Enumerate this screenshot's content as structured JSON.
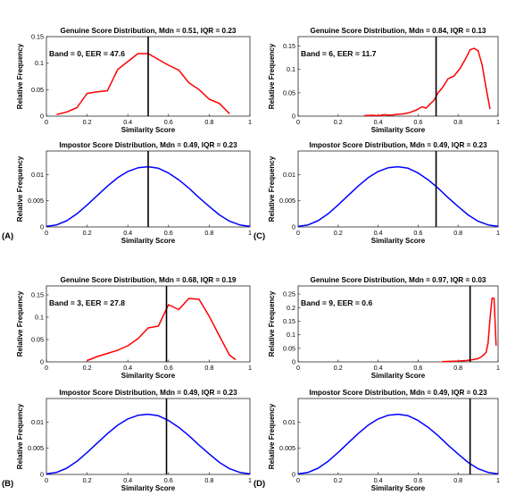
{
  "chart_data": [
    {
      "id": "A-genuine",
      "type": "line",
      "title": "Genuine Score Distribution, Mdn = 0.51, IQR = 0.23",
      "annotation": "Band = 0, EER = 47.6",
      "panel_label": "",
      "xlabel": "Similarity Score",
      "ylabel": "Relative Frequency",
      "xlim": [
        0,
        1
      ],
      "ylim": [
        0,
        0.15
      ],
      "xticks": [
        "0",
        "0.2",
        "0.4",
        "0.6",
        "0.8",
        "1"
      ],
      "yticks": [
        "0",
        "0.05",
        "0.1",
        "0.15"
      ],
      "threshold": 0.5,
      "series": [
        {
          "color": "#ff0000",
          "x": [
            0.05,
            0.1,
            0.15,
            0.2,
            0.25,
            0.3,
            0.35,
            0.4,
            0.45,
            0.5,
            0.55,
            0.6,
            0.65,
            0.7,
            0.75,
            0.8,
            0.85,
            0.9
          ],
          "y": [
            0.003,
            0.008,
            0.016,
            0.043,
            0.046,
            0.048,
            0.088,
            0.103,
            0.118,
            0.118,
            0.107,
            0.096,
            0.087,
            0.063,
            0.05,
            0.032,
            0.024,
            0.0045
          ]
        }
      ]
    },
    {
      "id": "A-impostor",
      "type": "line",
      "title": "Impostor Score Distribution, Mdn = 0.49, IQR = 0.23",
      "annotation": "",
      "panel_label": "(A)",
      "xlabel": "Similarity Score",
      "ylabel": "Relative Frequency",
      "xlim": [
        0,
        1
      ],
      "ylim": [
        0,
        0.0145
      ],
      "xticks": [
        "0",
        "0.2",
        "0.4",
        "0.6",
        "0.8",
        "1"
      ],
      "yticks": [
        "0",
        "0.005",
        "0.01"
      ],
      "threshold": 0.5,
      "series": [
        {
          "color": "#0000ff",
          "x": [
            0,
            0.05,
            0.1,
            0.15,
            0.2,
            0.25,
            0.3,
            0.35,
            0.4,
            0.45,
            0.5,
            0.55,
            0.6,
            0.65,
            0.7,
            0.75,
            0.8,
            0.85,
            0.9,
            0.95,
            1
          ],
          "y": [
            0.0001,
            0.0004,
            0.0012,
            0.0025,
            0.0042,
            0.006,
            0.0078,
            0.0094,
            0.0106,
            0.0113,
            0.0115,
            0.0112,
            0.0103,
            0.009,
            0.0074,
            0.0056,
            0.0039,
            0.0023,
            0.0011,
            0.0004,
            0.0001
          ]
        }
      ]
    },
    {
      "id": "C-genuine",
      "type": "line",
      "title": "Genuine Score Distribution, Mdn = 0.84, IQR = 0.13",
      "annotation": "Band = 6, EER = 11.7",
      "panel_label": "",
      "xlabel": "Similarity Score",
      "ylabel": "Relative Frequency",
      "xlim": [
        0,
        1
      ],
      "ylim": [
        0,
        0.17
      ],
      "xticks": [
        "0",
        "0.2",
        "0.4",
        "0.6",
        "0.8",
        "1"
      ],
      "yticks": [
        "0",
        "0.05",
        "0.1",
        "0.15"
      ],
      "threshold": 0.69,
      "series": [
        {
          "color": "#ff0000",
          "x": [
            0.33,
            0.37,
            0.4,
            0.43,
            0.46,
            0.5,
            0.53,
            0.56,
            0.59,
            0.62,
            0.64,
            0.66,
            0.68,
            0.7,
            0.72,
            0.75,
            0.78,
            0.81,
            0.84,
            0.86,
            0.88,
            0.9,
            0.92,
            0.94,
            0.96
          ],
          "y": [
            0.001,
            0.002,
            0.001,
            0.003,
            0.002,
            0.004,
            0.005,
            0.008,
            0.013,
            0.02,
            0.017,
            0.026,
            0.034,
            0.05,
            0.06,
            0.08,
            0.086,
            0.102,
            0.125,
            0.142,
            0.145,
            0.14,
            0.11,
            0.06,
            0.015
          ]
        }
      ]
    },
    {
      "id": "C-impostor",
      "type": "line",
      "title": "Impostor Score Distribution, Mdn = 0.49, IQR = 0.23",
      "annotation": "",
      "panel_label": "(C)",
      "xlabel": "Similarity Score",
      "ylabel": "Relative Frequency",
      "xlim": [
        0,
        1
      ],
      "ylim": [
        0,
        0.0145
      ],
      "xticks": [
        "0",
        "0.2",
        "0.4",
        "0.6",
        "0.8",
        "1"
      ],
      "yticks": [
        "0",
        "0.005",
        "0.01"
      ],
      "threshold": 0.69,
      "series": [
        {
          "color": "#0000ff",
          "x": [
            0,
            0.05,
            0.1,
            0.15,
            0.2,
            0.25,
            0.3,
            0.35,
            0.4,
            0.45,
            0.5,
            0.55,
            0.6,
            0.65,
            0.7,
            0.75,
            0.8,
            0.85,
            0.9,
            0.95,
            1
          ],
          "y": [
            0.0001,
            0.0004,
            0.0012,
            0.0025,
            0.0042,
            0.006,
            0.0078,
            0.0094,
            0.0106,
            0.0113,
            0.0115,
            0.0112,
            0.0103,
            0.009,
            0.0074,
            0.0056,
            0.0039,
            0.0023,
            0.0011,
            0.0004,
            0.0001
          ]
        }
      ]
    },
    {
      "id": "B-genuine",
      "type": "line",
      "title": "Genuine Score Distribution, Mdn = 0.68, IQR = 0.19",
      "annotation": "Band = 3, EER = 27.8",
      "panel_label": "",
      "xlabel": "Similarity Score",
      "ylabel": "Relative Frequency",
      "xlim": [
        0,
        1
      ],
      "ylim": [
        0,
        0.17
      ],
      "xticks": [
        "0",
        "0.2",
        "0.4",
        "0.6",
        "0.8",
        "1"
      ],
      "yticks": [
        "0",
        "0.05",
        "0.1",
        "0.15"
      ],
      "threshold": 0.59,
      "series": [
        {
          "color": "#ff0000",
          "x": [
            0.2,
            0.25,
            0.3,
            0.35,
            0.4,
            0.45,
            0.5,
            0.55,
            0.6,
            0.65,
            0.7,
            0.75,
            0.8,
            0.85,
            0.9,
            0.93
          ],
          "y": [
            0.003,
            0.012,
            0.019,
            0.026,
            0.036,
            0.052,
            0.076,
            0.08,
            0.128,
            0.117,
            0.142,
            0.14,
            0.102,
            0.058,
            0.015,
            0.005
          ]
        }
      ]
    },
    {
      "id": "B-impostor",
      "type": "line",
      "title": "Impostor Score Distribution, Mdn = 0.49, IQR = 0.23",
      "annotation": "",
      "panel_label": "(B)",
      "xlabel": "Similarity Score",
      "ylabel": "Relative Frequency",
      "xlim": [
        0,
        1
      ],
      "ylim": [
        0,
        0.0145
      ],
      "xticks": [
        "0",
        "0.2",
        "0.4",
        "0.6",
        "0.8",
        "1"
      ],
      "yticks": [
        "0",
        "0.005",
        "0.01"
      ],
      "threshold": 0.59,
      "series": [
        {
          "color": "#0000ff",
          "x": [
            0,
            0.05,
            0.1,
            0.15,
            0.2,
            0.25,
            0.3,
            0.35,
            0.4,
            0.45,
            0.5,
            0.55,
            0.6,
            0.65,
            0.7,
            0.75,
            0.8,
            0.85,
            0.9,
            0.95,
            1
          ],
          "y": [
            0.0001,
            0.0004,
            0.0012,
            0.0025,
            0.0042,
            0.006,
            0.0078,
            0.0094,
            0.0106,
            0.0113,
            0.0115,
            0.0112,
            0.0103,
            0.009,
            0.0074,
            0.0056,
            0.0039,
            0.0023,
            0.0011,
            0.0004,
            0.0001
          ]
        }
      ]
    },
    {
      "id": "D-genuine",
      "type": "line",
      "title": "Genuine Score Distribution, Mdn = 0.97, IQR = 0.03",
      "annotation": "Band = 9, EER = 0.6",
      "panel_label": "",
      "xlabel": "Similarity Score",
      "ylabel": "Relative Frequency",
      "xlim": [
        0,
        1
      ],
      "ylim": [
        0,
        0.28
      ],
      "xticks": [
        "0",
        "0.2",
        "0.4",
        "0.6",
        "0.8",
        "1"
      ],
      "yticks": [
        "0",
        "0.05",
        "0.1",
        "0.15",
        "0.2",
        "0.25"
      ],
      "threshold": 0.86,
      "series": [
        {
          "color": "#ff0000",
          "x": [
            0.72,
            0.76,
            0.8,
            0.84,
            0.87,
            0.9,
            0.92,
            0.94,
            0.95,
            0.96,
            0.97,
            0.98,
            0.99
          ],
          "y": [
            0.001,
            0.002,
            0.003,
            0.005,
            0.008,
            0.012,
            0.02,
            0.035,
            0.07,
            0.16,
            0.235,
            0.235,
            0.06
          ]
        }
      ]
    },
    {
      "id": "D-impostor",
      "type": "line",
      "title": "Impostor Score Distribution, Mdn = 0.49, IQR = 0.23",
      "annotation": "",
      "panel_label": "(D)",
      "xlabel": "Similarity Score",
      "ylabel": "Relative Frequency",
      "xlim": [
        0,
        1
      ],
      "ylim": [
        0,
        0.0145
      ],
      "xticks": [
        "0",
        "0.2",
        "0.4",
        "0.6",
        "0.8",
        "1"
      ],
      "yticks": [
        "0",
        "0.005",
        "0.01"
      ],
      "threshold": 0.86,
      "series": [
        {
          "color": "#0000ff",
          "x": [
            0,
            0.05,
            0.1,
            0.15,
            0.2,
            0.25,
            0.3,
            0.35,
            0.4,
            0.45,
            0.5,
            0.55,
            0.6,
            0.65,
            0.7,
            0.75,
            0.8,
            0.85,
            0.9,
            0.95,
            1
          ],
          "y": [
            0.0001,
            0.0004,
            0.0012,
            0.0025,
            0.0042,
            0.006,
            0.0078,
            0.0094,
            0.0106,
            0.0113,
            0.0115,
            0.0112,
            0.0103,
            0.009,
            0.0074,
            0.0056,
            0.0039,
            0.0023,
            0.0011,
            0.0004,
            0.0001
          ]
        }
      ]
    }
  ]
}
